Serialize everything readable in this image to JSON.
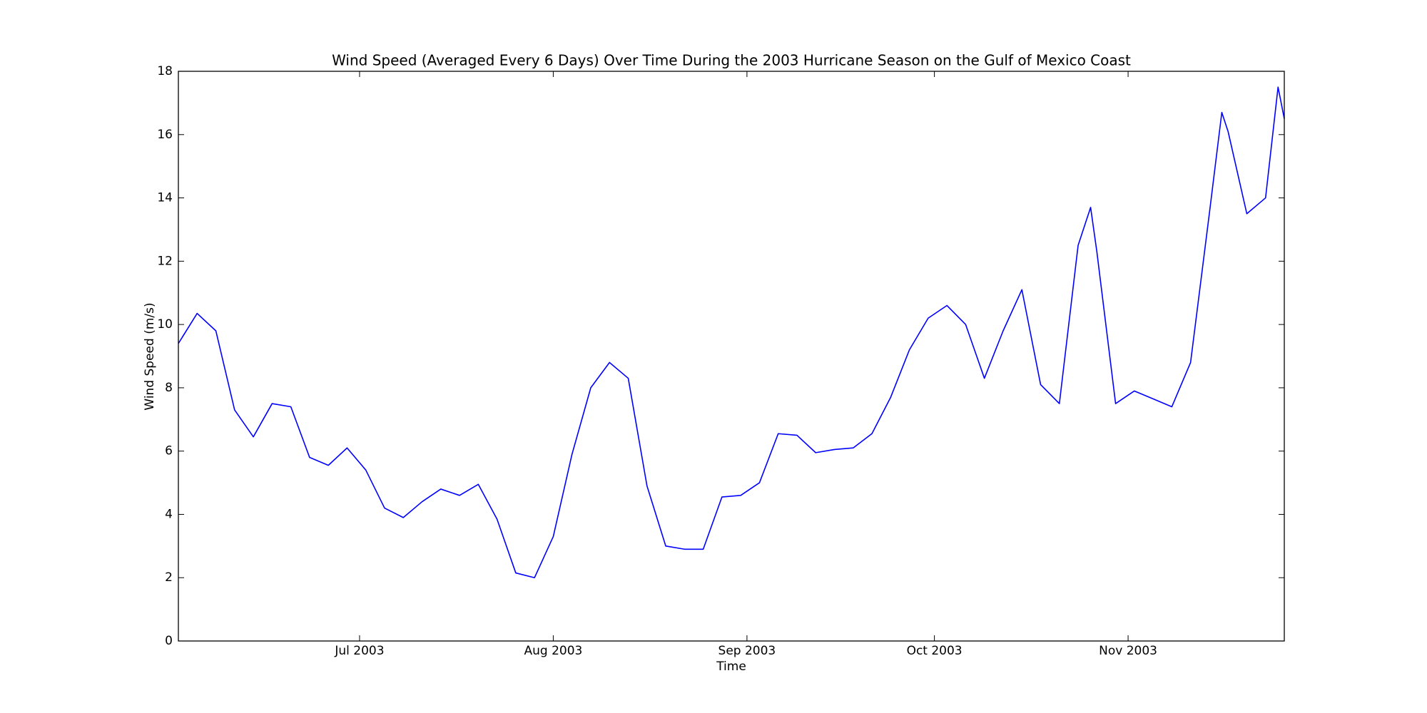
{
  "chart_data": {
    "type": "line",
    "title": "Wind Speed (Averaged Every 6 Days) Over Time During the 2003 Hurricane Season on the Gulf of Mexico Coast",
    "x_label": "Time",
    "y_label": "Wind Speed (m/s)",
    "x": [
      "2003-06-02",
      "2003-06-05",
      "2003-06-08",
      "2003-06-11",
      "2003-06-14",
      "2003-06-17",
      "2003-06-20",
      "2003-06-23",
      "2003-06-26",
      "2003-06-29",
      "2003-07-02",
      "2003-07-05",
      "2003-07-08",
      "2003-07-11",
      "2003-07-14",
      "2003-07-17",
      "2003-07-20",
      "2003-07-23",
      "2003-07-26",
      "2003-07-29",
      "2003-08-01",
      "2003-08-04",
      "2003-08-07",
      "2003-08-10",
      "2003-08-13",
      "2003-08-16",
      "2003-08-19",
      "2003-08-22",
      "2003-08-25",
      "2003-08-28",
      "2003-08-31",
      "2003-09-03",
      "2003-09-06",
      "2003-09-09",
      "2003-09-12",
      "2003-09-15",
      "2003-09-18",
      "2003-09-21",
      "2003-09-24",
      "2003-09-27",
      "2003-09-30",
      "2003-10-03",
      "2003-10-06",
      "2003-10-09",
      "2003-10-12",
      "2003-10-15",
      "2003-10-18",
      "2003-10-21",
      "2003-10-24",
      "2003-10-26",
      "2003-10-27",
      "2003-10-30",
      "2003-11-02",
      "2003-11-05",
      "2003-11-08",
      "2003-11-11",
      "2003-11-14",
      "2003-11-16",
      "2003-11-17",
      "2003-11-20",
      "2003-11-23",
      "2003-11-25",
      "2003-11-26"
    ],
    "series": [
      {
        "name": "Wind Speed",
        "color": "#0000ff",
        "values": [
          9.4,
          10.35,
          9.8,
          7.3,
          6.45,
          7.5,
          7.4,
          5.8,
          5.55,
          6.1,
          5.4,
          4.2,
          3.9,
          4.4,
          4.8,
          4.6,
          4.95,
          3.85,
          2.15,
          2.0,
          3.3,
          5.9,
          8.0,
          8.8,
          8.3,
          4.9,
          3.0,
          2.9,
          2.9,
          4.55,
          4.6,
          5.0,
          6.55,
          6.5,
          5.95,
          6.05,
          6.1,
          6.55,
          7.7,
          9.2,
          10.2,
          10.6,
          10.0,
          8.3,
          9.8,
          11.1,
          8.1,
          7.5,
          12.5,
          13.7,
          12.3,
          7.5,
          7.9,
          7.65,
          7.4,
          8.8,
          13.5,
          16.7,
          16.1,
          13.5,
          14.0,
          17.5,
          16.5
        ]
      }
    ],
    "xlim": [
      "2003-06-02",
      "2003-11-26"
    ],
    "xticks": [
      {
        "value": "2003-07-01",
        "label": "Jul 2003"
      },
      {
        "value": "2003-08-01",
        "label": "Aug 2003"
      },
      {
        "value": "2003-09-01",
        "label": "Sep 2003"
      },
      {
        "value": "2003-10-01",
        "label": "Oct 2003"
      },
      {
        "value": "2003-11-01",
        "label": "Nov 2003"
      }
    ],
    "ylim": [
      0,
      18
    ],
    "yticks": [
      0,
      2,
      4,
      6,
      8,
      10,
      12,
      14,
      16,
      18
    ],
    "grid": false
  }
}
